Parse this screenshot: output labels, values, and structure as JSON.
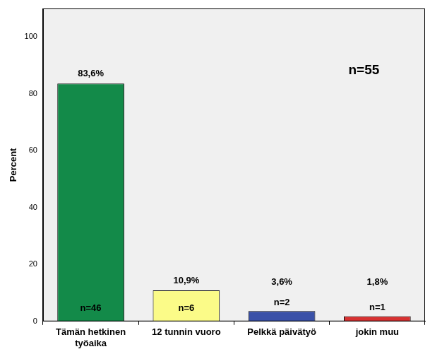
{
  "chart_data": {
    "type": "bar",
    "y_label": "Percent",
    "categories": [
      [
        "Tämän hetkinen",
        "työaika"
      ],
      "12 tunnin vuoro",
      "Pelkkä päivätyö",
      "jokin muu"
    ],
    "values": [
      83.6,
      10.9,
      3.6,
      1.8
    ],
    "value_labels": [
      "83,6%",
      "10,9%",
      "3,6%",
      "1,8%"
    ],
    "count_labels": [
      "n=46",
      "n=6",
      "n=2",
      "n=1"
    ],
    "colors": [
      "#138a49",
      "#fbfb88",
      "#3a51a8",
      "#d83131"
    ],
    "annotation": "n=55",
    "ylim": [
      0,
      110
    ],
    "yticks": [
      0,
      20,
      40,
      60,
      80,
      100
    ],
    "grid": false,
    "data_labels": true
  }
}
